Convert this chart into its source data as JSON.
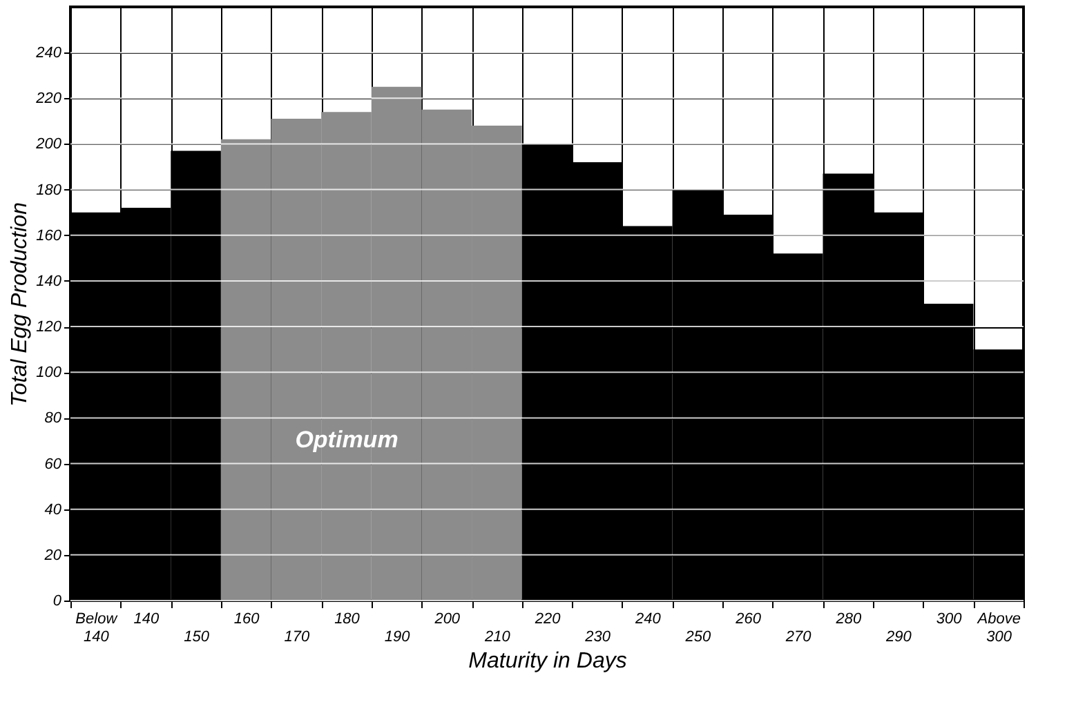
{
  "chart_data": {
    "type": "bar",
    "xlabel": "Maturity in Days",
    "ylabel": "Total Egg Production",
    "categories": [
      "Below 140",
      "140",
      "150",
      "160",
      "170",
      "180",
      "190",
      "200",
      "210",
      "220",
      "230",
      "240",
      "250",
      "260",
      "270",
      "280",
      "290",
      "300",
      "Above 300"
    ],
    "values": [
      170,
      172,
      197,
      202,
      211,
      214,
      225,
      215,
      208,
      200,
      192,
      164,
      180,
      169,
      152,
      187,
      170,
      130,
      110
    ],
    "colors": [
      "#000000",
      "#000000",
      "#000000",
      "#8c8c8c",
      "#8c8c8c",
      "#8c8c8c",
      "#8c8c8c",
      "#8c8c8c",
      "#8c8c8c",
      "#000000",
      "#000000",
      "#000000",
      "#000000",
      "#000000",
      "#000000",
      "#000000",
      "#000000",
      "#000000",
      "#000000"
    ],
    "ylim": [
      0,
      260
    ],
    "yticks": [
      0,
      20,
      40,
      60,
      80,
      100,
      120,
      140,
      160,
      180,
      200,
      220,
      240
    ],
    "grid": true,
    "annotations": [
      "Optimum"
    ]
  }
}
